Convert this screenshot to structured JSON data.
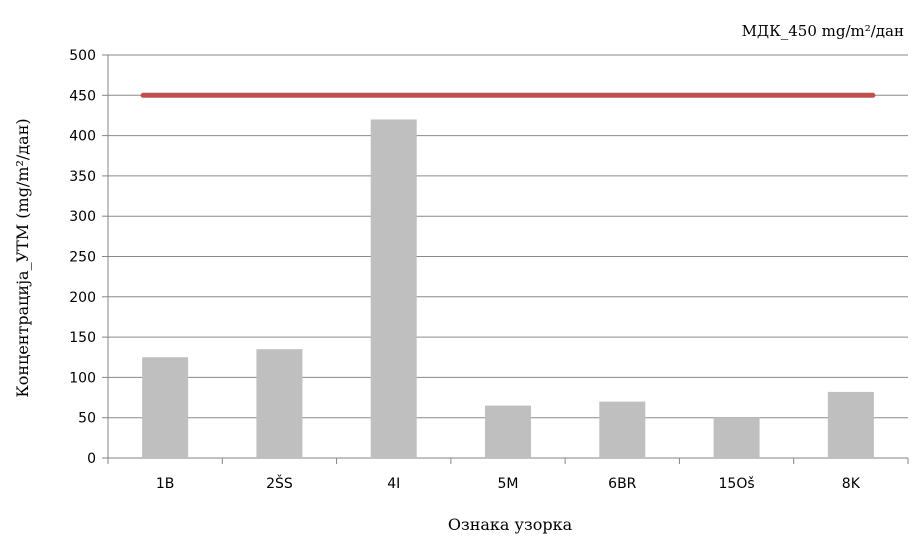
{
  "chart_data": {
    "type": "bar",
    "title": "",
    "xlabel": "Ознака узорка",
    "ylabel": "Концентрација_УТМ (mg/m²/дан)",
    "ylim": [
      0,
      500
    ],
    "yticks": [
      0,
      50,
      100,
      150,
      200,
      250,
      300,
      350,
      400,
      450,
      500
    ],
    "grid": true,
    "categories": [
      "1B",
      "2ŠS",
      "4I",
      "5M",
      "6BR",
      "15Oš",
      "8K"
    ],
    "series": [
      {
        "values": [
          125,
          135,
          420,
          65,
          70,
          50,
          82
        ],
        "color": "#bfbfbf"
      },
      {
        "name": "МДК_450 mg/m²/дан",
        "type": "line",
        "values": [
          450,
          450,
          450,
          450,
          450,
          450,
          450
        ],
        "color": "#c0504d"
      }
    ],
    "legend": "top-right"
  }
}
